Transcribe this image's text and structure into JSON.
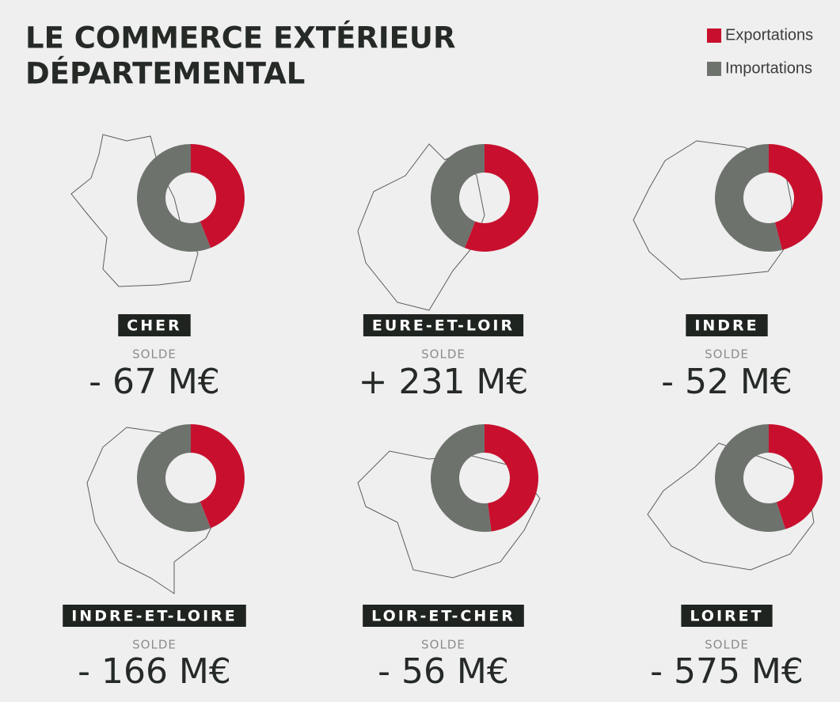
{
  "chart_data": {
    "type": "donut",
    "title": [
      "LE COMMERCE EXTÉRIEUR",
      "DÉPARTEMENTAL"
    ],
    "categories": [
      "CHER",
      "EURE-ET-LOIR",
      "INDRE",
      "INDRE-ET-LOIRE",
      "LOIR-ET-CHER",
      "LOIRET"
    ],
    "series": [
      {
        "name": "Exportations",
        "color": "#c8102e",
        "values": [
          44,
          56,
          46,
          44,
          48,
          45
        ]
      },
      {
        "name": "Importations",
        "color": "#6e726d",
        "values": [
          56,
          44,
          54,
          56,
          52,
          55
        ]
      }
    ],
    "sublabel": "SOLDE",
    "annotations": [
      "- 67 M€",
      "+ 231 M€",
      "- 52 M€",
      "- 166 M€",
      "- 56 M€",
      "- 575 M€"
    ]
  }
}
